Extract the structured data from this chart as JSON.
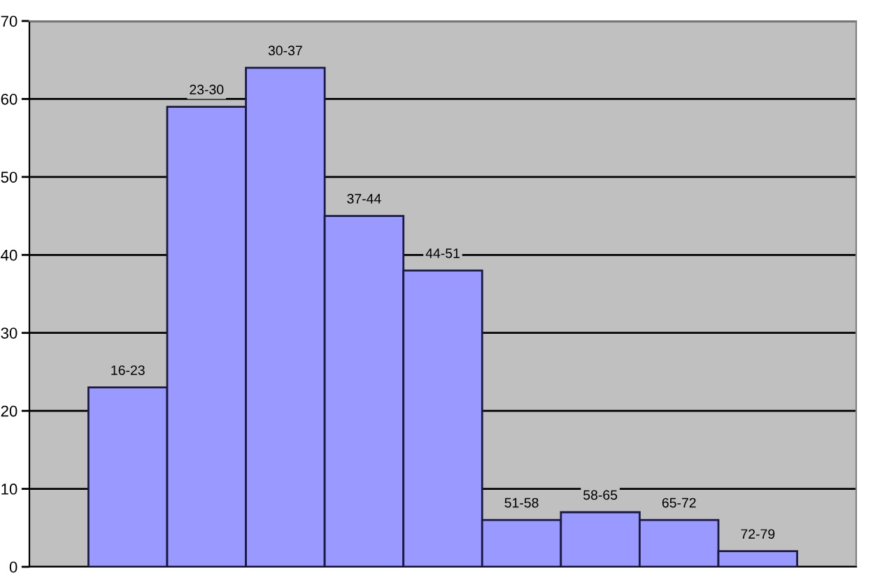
{
  "chart_data": {
    "type": "bar",
    "categories": [
      "16-23",
      "23-30",
      "30-37",
      "37-44",
      "44-51",
      "51-58",
      "58-65",
      "65-72",
      "72-79"
    ],
    "values": [
      23,
      59,
      64,
      45,
      38,
      6,
      7,
      6,
      2
    ],
    "color": "#9999ff",
    "ylim": [
      0,
      70
    ],
    "yticks": [
      0,
      10,
      20,
      30,
      40,
      50,
      60,
      70
    ],
    "grid": "y"
  }
}
